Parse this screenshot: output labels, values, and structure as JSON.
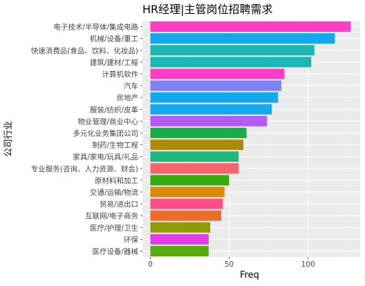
{
  "chart_data": {
    "type": "bar",
    "orientation": "horizontal",
    "title": "HR经理|主管岗位招聘需求",
    "xlabel": "Freq",
    "ylabel": "公司行业",
    "xlim": [
      -5,
      133
    ],
    "x_ticks": [
      0,
      50,
      100
    ],
    "grid": true,
    "legend": "none",
    "panel_background": "#ebebeb",
    "bars": [
      {
        "category": "电子技术/半导体/集成电路",
        "value": 127,
        "color": "#FF3FC3"
      },
      {
        "category": "机械/设备/重工",
        "value": 117,
        "color": "#14A8EF"
      },
      {
        "category": "快速消费品(食品、饮料、化妆品)",
        "value": 104,
        "color": "#1BB7B4"
      },
      {
        "category": "建筑/建材/工程",
        "value": 102,
        "color": "#1BB7B4"
      },
      {
        "category": "计算机软件",
        "value": 85,
        "color": "#FF3FC3"
      },
      {
        "category": "汽车",
        "value": 83,
        "color": "#7D82F5"
      },
      {
        "category": "房地产",
        "value": 81,
        "color": "#14A8EF"
      },
      {
        "category": "服装/纺织/皮革",
        "value": 77,
        "color": "#14A8EF"
      },
      {
        "category": "物业管理/商业中心",
        "value": 74,
        "color": "#B35CF5"
      },
      {
        "category": "多元化业务集团公司",
        "value": 61,
        "color": "#19AD48"
      },
      {
        "category": "制药/生物工程",
        "value": 59,
        "color": "#AA8B0C"
      },
      {
        "category": "家具/家电/玩具/礼品",
        "value": 56,
        "color": "#1EB97A"
      },
      {
        "category": "专业服务(咨询、人力资源、财会)",
        "value": 56,
        "color": "#F6656A"
      },
      {
        "category": "原材料和加工",
        "value": 50,
        "color": "#36AA0C"
      },
      {
        "category": "交通/运输/物流",
        "value": 47,
        "color": "#D88A0C"
      },
      {
        "category": "贸易/进出口",
        "value": 46,
        "color": "#FA4F86"
      },
      {
        "category": "互联网/电子商务",
        "value": 45,
        "color": "#EA6E2A"
      },
      {
        "category": "医疗/护理/卫生",
        "value": 38,
        "color": "#8E9A08"
      },
      {
        "category": "环保",
        "value": 37,
        "color": "#E33CEB"
      },
      {
        "category": "医疗设备/器械",
        "value": 37,
        "color": "#59A80C"
      }
    ]
  }
}
